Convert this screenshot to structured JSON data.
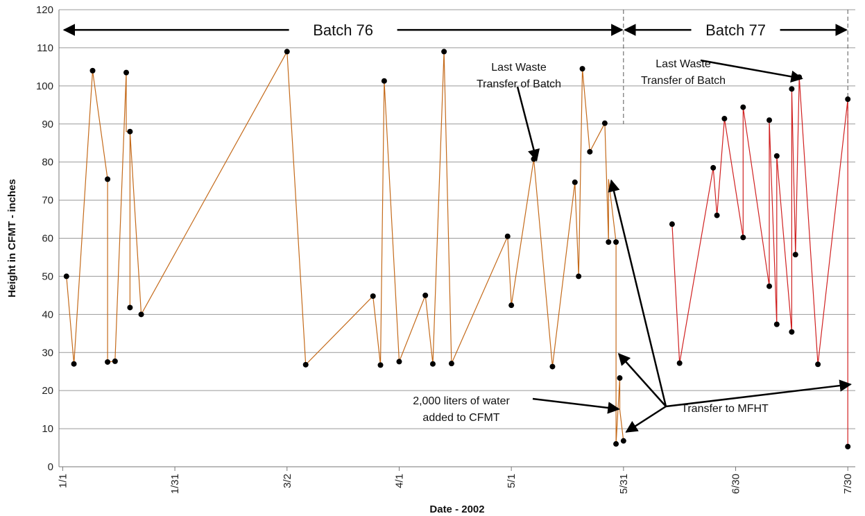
{
  "chart_data": {
    "type": "line",
    "title": "",
    "xlabel": "Date - 2002",
    "ylabel": "Height in CFMT - inches",
    "ylim": [
      0,
      120
    ],
    "yticks": [
      0,
      10,
      20,
      30,
      40,
      50,
      60,
      70,
      80,
      90,
      100,
      110,
      120
    ],
    "xticks": [
      "1/1",
      "1/31",
      "3/2",
      "4/1",
      "5/1",
      "5/31",
      "6/30",
      "7/30"
    ],
    "xlim_day_of_year": [
      0,
      213
    ],
    "xtick_day_of_year": [
      1,
      31,
      61,
      91,
      121,
      151,
      181,
      211
    ],
    "grid": "horizontal",
    "colors": {
      "batch76": "#C46A1A",
      "batch77": "#D02020",
      "marker": "#000000",
      "grid": "#999999"
    },
    "series": [
      {
        "name": "Batch 76",
        "points": [
          {
            "x": "1/2",
            "y": 50
          },
          {
            "x": "1/4",
            "y": 27
          },
          {
            "x": "1/9",
            "y": 104
          },
          {
            "x": "1/13",
            "y": 75.5
          },
          {
            "x": "1/13",
            "y": 27.5
          },
          {
            "x": "1/15",
            "y": 27.7
          },
          {
            "x": "1/18",
            "y": 103.5
          },
          {
            "x": "1/18",
            "y": 88
          },
          {
            "x": "1/19",
            "y": 88
          },
          {
            "x": "1/19",
            "y": 41.8
          },
          {
            "x": "1/19",
            "y": 88
          },
          {
            "x": "1/22",
            "y": 40
          },
          {
            "x": "3/2",
            "y": 109
          },
          {
            "x": "3/7",
            "y": 26.8
          },
          {
            "x": "3/25",
            "y": 44.8
          },
          {
            "x": "3/27",
            "y": 26.7
          },
          {
            "x": "3/28",
            "y": 101.3
          },
          {
            "x": "4/1",
            "y": 27.6
          },
          {
            "x": "4/8",
            "y": 45
          },
          {
            "x": "4/10",
            "y": 27
          },
          {
            "x": "4/13",
            "y": 109
          },
          {
            "x": "4/15",
            "y": 27.1
          },
          {
            "x": "4/30",
            "y": 60.5
          },
          {
            "x": "5/1",
            "y": 42.4
          },
          {
            "x": "5/7",
            "y": 80.8
          },
          {
            "x": "5/12",
            "y": 26.3
          },
          {
            "x": "5/18",
            "y": 74.7
          },
          {
            "x": "5/19",
            "y": 50
          },
          {
            "x": "5/20",
            "y": 104.5
          },
          {
            "x": "5/22",
            "y": 82.7
          },
          {
            "x": "5/26",
            "y": 90.2
          },
          {
            "x": "5/27",
            "y": 59
          },
          {
            "x": "5/27",
            "y": 75.5
          },
          {
            "x": "5/29",
            "y": 59
          },
          {
            "x": "5/29",
            "y": 6
          },
          {
            "x": "5/30",
            "y": 23.3
          },
          {
            "x": "5/30",
            "y": 15
          },
          {
            "x": "5/31",
            "y": 6.8
          }
        ]
      },
      {
        "name": "Batch 77",
        "points": [
          {
            "x": "6/13",
            "y": 63.7
          },
          {
            "x": "6/15",
            "y": 27.2
          },
          {
            "x": "6/24",
            "y": 78.5
          },
          {
            "x": "6/25",
            "y": 66
          },
          {
            "x": "6/27",
            "y": 91.4
          },
          {
            "x": "7/2",
            "y": 60.2
          },
          {
            "x": "7/2",
            "y": 94.4
          },
          {
            "x": "7/9",
            "y": 47.4
          },
          {
            "x": "7/9",
            "y": 91
          },
          {
            "x": "7/11",
            "y": 37.4
          },
          {
            "x": "7/11",
            "y": 81.6
          },
          {
            "x": "7/15",
            "y": 35.4
          },
          {
            "x": "7/15",
            "y": 99.2
          },
          {
            "x": "7/16",
            "y": 55.7
          },
          {
            "x": "7/17",
            "y": 102.3
          },
          {
            "x": "7/22",
            "y": 26.9
          },
          {
            "x": "7/30",
            "y": 96.5
          },
          {
            "x": "7/30",
            "y": 5.3
          }
        ]
      }
    ],
    "markers": [
      {
        "x": "1/2",
        "y": 50
      },
      {
        "x": "1/4",
        "y": 27
      },
      {
        "x": "1/9",
        "y": 104
      },
      {
        "x": "1/13",
        "y": 75.5
      },
      {
        "x": "1/13",
        "y": 27.5
      },
      {
        "x": "1/15",
        "y": 27.7
      },
      {
        "x": "1/18",
        "y": 103.5
      },
      {
        "x": "1/19",
        "y": 88
      },
      {
        "x": "1/19",
        "y": 41.8
      },
      {
        "x": "1/22",
        "y": 40
      },
      {
        "x": "3/2",
        "y": 109
      },
      {
        "x": "3/7",
        "y": 26.8
      },
      {
        "x": "3/25",
        "y": 44.8
      },
      {
        "x": "3/27",
        "y": 26.7
      },
      {
        "x": "3/28",
        "y": 101.3
      },
      {
        "x": "4/1",
        "y": 27.6
      },
      {
        "x": "4/8",
        "y": 45
      },
      {
        "x": "4/10",
        "y": 27
      },
      {
        "x": "4/13",
        "y": 109
      },
      {
        "x": "4/15",
        "y": 27.1
      },
      {
        "x": "4/30",
        "y": 60.5
      },
      {
        "x": "5/1",
        "y": 42.4
      },
      {
        "x": "5/7",
        "y": 80.8
      },
      {
        "x": "5/12",
        "y": 26.3
      },
      {
        "x": "5/18",
        "y": 74.7
      },
      {
        "x": "5/19",
        "y": 50
      },
      {
        "x": "5/20",
        "y": 104.5
      },
      {
        "x": "5/22",
        "y": 82.7
      },
      {
        "x": "5/26",
        "y": 90.2
      },
      {
        "x": "5/27",
        "y": 59
      },
      {
        "x": "5/29",
        "y": 59
      },
      {
        "x": "5/29",
        "y": 6
      },
      {
        "x": "5/30",
        "y": 23.3
      },
      {
        "x": "5/31",
        "y": 6.8
      },
      {
        "x": "6/13",
        "y": 63.7
      },
      {
        "x": "6/15",
        "y": 27.2
      },
      {
        "x": "6/24",
        "y": 78.5
      },
      {
        "x": "6/25",
        "y": 66
      },
      {
        "x": "6/27",
        "y": 91.4
      },
      {
        "x": "7/2",
        "y": 60.2
      },
      {
        "x": "7/2",
        "y": 94.4
      },
      {
        "x": "7/9",
        "y": 47.4
      },
      {
        "x": "7/9",
        "y": 91
      },
      {
        "x": "7/11",
        "y": 37.4
      },
      {
        "x": "7/11",
        "y": 81.6
      },
      {
        "x": "7/15",
        "y": 35.4
      },
      {
        "x": "7/15",
        "y": 99.2
      },
      {
        "x": "7/16",
        "y": 55.7
      },
      {
        "x": "7/17",
        "y": 102.3
      },
      {
        "x": "7/22",
        "y": 26.9
      },
      {
        "x": "7/30",
        "y": 96.5
      },
      {
        "x": "7/30",
        "y": 5.3
      }
    ],
    "batch_ranges": [
      {
        "label": "Batch 76",
        "from": "1/1",
        "to": "5/31"
      },
      {
        "label": "Batch 77",
        "from": "5/31",
        "to": "7/30"
      }
    ],
    "dividers": [
      {
        "x": "5/31"
      },
      {
        "x": "7/30"
      }
    ],
    "annotations": [
      {
        "lines": [
          "Last Waste",
          "Transfer of Batch"
        ],
        "target": {
          "x": "5/7",
          "y": 80.8
        }
      },
      {
        "lines": [
          "Last Waste",
          "Transfer of Batch"
        ],
        "target": {
          "x": "7/17",
          "y": 102.3
        }
      },
      {
        "lines": [
          "2,000 liters of water",
          "added to CFMT"
        ],
        "target": {
          "x": "5/29",
          "y": 15.5
        }
      },
      {
        "lines": [
          "Transfer to MFHT"
        ],
        "targets": [
          {
            "x": "5/27",
            "y": 75.5
          },
          {
            "x": "5/29",
            "y": 30
          },
          {
            "x": "5/31",
            "y": 9.5
          },
          {
            "x": "7/30",
            "y": 22
          }
        ]
      }
    ]
  }
}
